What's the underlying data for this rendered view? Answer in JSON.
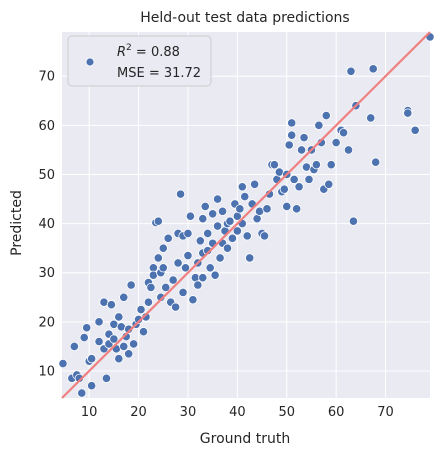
{
  "chart_data": {
    "type": "scatter",
    "title": "Held-out test data predictions",
    "xlabel": "Ground truth",
    "ylabel": "Predicted",
    "xlim": [
      4.5,
      79
    ],
    "ylim": [
      4.5,
      79
    ],
    "xticks": [
      10,
      20,
      30,
      40,
      50,
      60,
      70
    ],
    "yticks": [
      10,
      20,
      30,
      40,
      50,
      60,
      70
    ],
    "grid": true,
    "legend_position": "top-left",
    "legend": {
      "r2_prefix": "R",
      "r2_superscript": "2",
      "r2_value": " = 0.88",
      "mse_label": "MSE = 31.72"
    },
    "colors": {
      "background": "#eaeaf2",
      "grid": "#ffffff",
      "points": "#4c72b0",
      "point_edge": "#ffffff",
      "identity_line": "#f08080"
    },
    "identity_line": [
      [
        4.5,
        4.5
      ],
      [
        79,
        79
      ]
    ],
    "points": [
      [
        4.7,
        11.5
      ],
      [
        6.5,
        8.5
      ],
      [
        7.0,
        15.0
      ],
      [
        7.5,
        9.2
      ],
      [
        8.0,
        8.5
      ],
      [
        8.5,
        5.5
      ],
      [
        9.0,
        16.8
      ],
      [
        9.5,
        18.8
      ],
      [
        10.0,
        12.0
      ],
      [
        10.5,
        7.0
      ],
      [
        10.5,
        12.5
      ],
      [
        12.0,
        20.0
      ],
      [
        12.0,
        16.0
      ],
      [
        13.0,
        14.5
      ],
      [
        13.0,
        24.0
      ],
      [
        13.5,
        8.5
      ],
      [
        14.0,
        17.5
      ],
      [
        14.0,
        15.5
      ],
      [
        14.5,
        23.5
      ],
      [
        15.0,
        19.5
      ],
      [
        15.0,
        16.5
      ],
      [
        15.5,
        14.5
      ],
      [
        16.0,
        12.5
      ],
      [
        16.0,
        21.0
      ],
      [
        16.5,
        19.0
      ],
      [
        17.0,
        25.0
      ],
      [
        17.0,
        15.0
      ],
      [
        17.5,
        17.0
      ],
      [
        18.0,
        18.5
      ],
      [
        18.0,
        13.5
      ],
      [
        18.5,
        27.5
      ],
      [
        19.0,
        15.5
      ],
      [
        19.5,
        19.5
      ],
      [
        20.0,
        20.5
      ],
      [
        20.5,
        22.5
      ],
      [
        21.0,
        18.0
      ],
      [
        21.5,
        21.0
      ],
      [
        22.0,
        24.0
      ],
      [
        22.0,
        28.0
      ],
      [
        22.5,
        27.0
      ],
      [
        23.0,
        31.0
      ],
      [
        23.0,
        29.5
      ],
      [
        23.5,
        40.2
      ],
      [
        24.0,
        40.5
      ],
      [
        24.0,
        33.0
      ],
      [
        24.5,
        25.0
      ],
      [
        24.5,
        30.0
      ],
      [
        25.0,
        35.0
      ],
      [
        25.0,
        31.0
      ],
      [
        25.5,
        27.0
      ],
      [
        26.0,
        37.0
      ],
      [
        26.5,
        24.0
      ],
      [
        27.0,
        28.5
      ],
      [
        27.5,
        23.0
      ],
      [
        28.0,
        32.0
      ],
      [
        28.0,
        38.0
      ],
      [
        28.5,
        46.0
      ],
      [
        29.0,
        37.5
      ],
      [
        29.0,
        26.0
      ],
      [
        29.5,
        31.0
      ],
      [
        30.0,
        33.5
      ],
      [
        30.0,
        38.0
      ],
      [
        30.5,
        41.5
      ],
      [
        31.0,
        24.5
      ],
      [
        31.5,
        29.0
      ],
      [
        32.0,
        32.0
      ],
      [
        32.0,
        27.5
      ],
      [
        32.5,
        36.5
      ],
      [
        33.0,
        34.0
      ],
      [
        33.0,
        41.0
      ],
      [
        33.0,
        29.0
      ],
      [
        33.5,
        43.5
      ],
      [
        34.0,
        38.0
      ],
      [
        34.0,
        34.5
      ],
      [
        34.5,
        31.0
      ],
      [
        35.0,
        42.0
      ],
      [
        35.0,
        36.0
      ],
      [
        35.5,
        29.5
      ],
      [
        36.0,
        45.0
      ],
      [
        36.0,
        39.5
      ],
      [
        36.5,
        33.0
      ],
      [
        37.0,
        36.0
      ],
      [
        37.0,
        42.5
      ],
      [
        37.5,
        38.5
      ],
      [
        38.0,
        40.0
      ],
      [
        38.0,
        35.0
      ],
      [
        38.5,
        40.5
      ],
      [
        39.0,
        37.0
      ],
      [
        39.5,
        44.0
      ],
      [
        40.0,
        41.5
      ],
      [
        40.0,
        38.5
      ],
      [
        40.5,
        43.0
      ],
      [
        41.0,
        47.5
      ],
      [
        41.0,
        40.0
      ],
      [
        41.5,
        45.5
      ],
      [
        42.0,
        37.5
      ],
      [
        42.5,
        33.0
      ],
      [
        43.0,
        44.0
      ],
      [
        43.5,
        48.0
      ],
      [
        44.0,
        41.0
      ],
      [
        44.5,
        42.5
      ],
      [
        45.0,
        38.0
      ],
      [
        45.5,
        37.5
      ],
      [
        46.0,
        43.0
      ],
      [
        46.5,
        46.0
      ],
      [
        47.0,
        52.0
      ],
      [
        47.5,
        52.0
      ],
      [
        48.0,
        49.0
      ],
      [
        48.5,
        50.5
      ],
      [
        49.0,
        46.5
      ],
      [
        49.5,
        47.0
      ],
      [
        50.0,
        43.5
      ],
      [
        50.0,
        50.0
      ],
      [
        50.5,
        56.0
      ],
      [
        51.0,
        58.0
      ],
      [
        51.0,
        60.5
      ],
      [
        51.5,
        49.0
      ],
      [
        52.0,
        43.0
      ],
      [
        52.5,
        47.5
      ],
      [
        53.0,
        55.0
      ],
      [
        53.5,
        57.5
      ],
      [
        54.0,
        51.5
      ],
      [
        54.5,
        49.0
      ],
      [
        55.0,
        55.0
      ],
      [
        55.5,
        51.0
      ],
      [
        56.0,
        52.0
      ],
      [
        56.5,
        60.0
      ],
      [
        57.0,
        56.5
      ],
      [
        57.5,
        47.0
      ],
      [
        58.0,
        62.0
      ],
      [
        58.5,
        48.0
      ],
      [
        59.0,
        52.0
      ],
      [
        60.0,
        56.5
      ],
      [
        61.0,
        59.0
      ],
      [
        61.5,
        58.5
      ],
      [
        62.5,
        55.0
      ],
      [
        63.0,
        71.0
      ],
      [
        63.5,
        40.5
      ],
      [
        64.0,
        64.0
      ],
      [
        67.0,
        61.5
      ],
      [
        67.5,
        71.5
      ],
      [
        68.0,
        52.5
      ],
      [
        74.5,
        63.0
      ],
      [
        74.5,
        62.5
      ],
      [
        76.0,
        59.0
      ],
      [
        79.0,
        78.0
      ]
    ]
  }
}
